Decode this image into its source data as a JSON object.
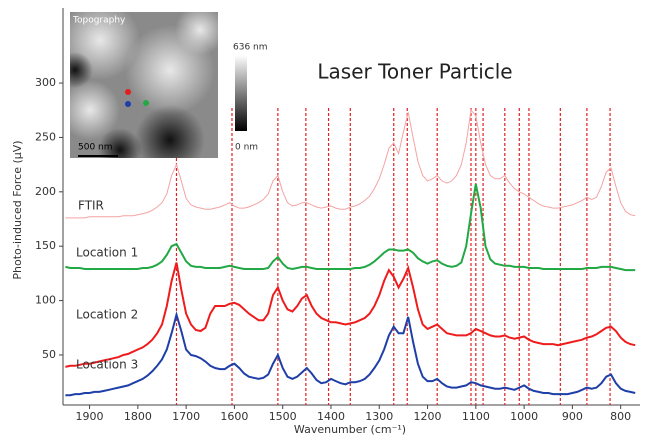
{
  "chart_data": {
    "type": "line",
    "title": "Laser Toner Particle",
    "x_label": "Wavenumber (cm⁻¹)",
    "y_label": "Photo-induced Force (μV)",
    "inset": {
      "title": "Topography",
      "scale_bar": "500 nm",
      "colorbar_max": "636 nm",
      "colorbar_min": "0 nm"
    },
    "x": [
      1950,
      1940,
      1930,
      1920,
      1910,
      1900,
      1890,
      1880,
      1870,
      1860,
      1850,
      1840,
      1830,
      1820,
      1810,
      1800,
      1790,
      1780,
      1770,
      1760,
      1750,
      1740,
      1730,
      1720,
      1710,
      1700,
      1690,
      1680,
      1670,
      1660,
      1650,
      1640,
      1630,
      1620,
      1610,
      1600,
      1590,
      1580,
      1570,
      1560,
      1550,
      1540,
      1530,
      1520,
      1510,
      1500,
      1490,
      1480,
      1470,
      1460,
      1450,
      1440,
      1430,
      1420,
      1410,
      1400,
      1390,
      1380,
      1370,
      1360,
      1350,
      1340,
      1330,
      1320,
      1310,
      1300,
      1290,
      1280,
      1270,
      1260,
      1250,
      1240,
      1230,
      1220,
      1210,
      1200,
      1190,
      1180,
      1170,
      1160,
      1150,
      1140,
      1130,
      1120,
      1110,
      1100,
      1090,
      1080,
      1070,
      1060,
      1050,
      1040,
      1030,
      1020,
      1010,
      1000,
      990,
      980,
      970,
      960,
      950,
      940,
      930,
      920,
      910,
      900,
      890,
      880,
      870,
      860,
      850,
      840,
      830,
      820,
      810,
      800,
      790,
      780,
      770
    ],
    "series": [
      {
        "name": "FTIR",
        "color": "#f4a3a3",
        "values": [
          176,
          176,
          176,
          176,
          176,
          177,
          177,
          177,
          177,
          177,
          177,
          177,
          178,
          178,
          178,
          179,
          180,
          181,
          183,
          186,
          190,
          198,
          215,
          225,
          210,
          194,
          188,
          186,
          185,
          184,
          184,
          185,
          186,
          188,
          190,
          187,
          185,
          185,
          186,
          188,
          190,
          193,
          198,
          210,
          215,
          200,
          190,
          187,
          188,
          190,
          190,
          188,
          186,
          185,
          186,
          187,
          185,
          184,
          184,
          186,
          187,
          189,
          192,
          196,
          203,
          212,
          225,
          240,
          245,
          235,
          255,
          273,
          250,
          228,
          215,
          210,
          212,
          215,
          210,
          208,
          210,
          215,
          225,
          245,
          275,
          270,
          245,
          225,
          215,
          212,
          212,
          215,
          208,
          203,
          200,
          198,
          195,
          192,
          189,
          187,
          186,
          185,
          185,
          186,
          187,
          188,
          190,
          192,
          195,
          193,
          195,
          205,
          218,
          222,
          205,
          190,
          182,
          179,
          178
        ]
      },
      {
        "name": "Location 1",
        "color": "#22a845",
        "values": [
          131,
          130,
          130,
          130,
          129,
          129,
          129,
          129,
          129,
          129,
          129,
          129,
          129,
          129,
          129,
          129,
          130,
          130,
          131,
          133,
          136,
          142,
          150,
          152,
          144,
          136,
          132,
          131,
          131,
          130,
          130,
          130,
          130,
          131,
          132,
          131,
          130,
          129,
          129,
          129,
          129,
          129,
          130,
          136,
          140,
          134,
          130,
          129,
          130,
          131,
          131,
          130,
          129,
          129,
          129,
          129,
          129,
          129,
          129,
          129,
          130,
          130,
          131,
          133,
          136,
          140,
          144,
          147,
          147,
          146,
          146,
          147,
          144,
          139,
          136,
          134,
          136,
          137,
          134,
          132,
          131,
          132,
          135,
          150,
          180,
          207,
          185,
          150,
          138,
          134,
          133,
          132,
          132,
          131,
          131,
          131,
          130,
          130,
          130,
          129,
          129,
          129,
          129,
          129,
          129,
          129,
          129,
          129,
          130,
          130,
          130,
          131,
          131,
          131,
          130,
          129,
          128,
          128,
          128
        ]
      },
      {
        "name": "Location 2",
        "color": "#ee1c1c",
        "values": [
          39,
          40,
          40,
          41,
          42,
          42,
          43,
          44,
          45,
          46,
          47,
          48,
          50,
          51,
          53,
          55,
          57,
          60,
          64,
          70,
          78,
          95,
          118,
          135,
          110,
          88,
          78,
          73,
          72,
          75,
          88,
          95,
          95,
          95,
          97,
          98,
          96,
          92,
          88,
          85,
          82,
          82,
          88,
          105,
          112,
          100,
          92,
          90,
          95,
          102,
          105,
          95,
          88,
          84,
          82,
          80,
          80,
          79,
          78,
          79,
          80,
          82,
          84,
          88,
          95,
          105,
          118,
          128,
          122,
          112,
          120,
          130,
          112,
          92,
          78,
          74,
          76,
          78,
          74,
          70,
          69,
          68,
          68,
          68,
          70,
          74,
          72,
          70,
          68,
          67,
          67,
          68,
          66,
          65,
          66,
          67,
          64,
          62,
          61,
          60,
          60,
          60,
          59,
          60,
          61,
          62,
          63,
          64,
          66,
          67,
          69,
          72,
          75,
          76,
          72,
          66,
          62,
          60,
          59
        ]
      },
      {
        "name": "Location 3",
        "color": "#1f3fa8",
        "values": [
          13,
          13,
          14,
          14,
          15,
          15,
          16,
          16,
          17,
          18,
          19,
          20,
          21,
          22,
          24,
          26,
          28,
          31,
          35,
          40,
          46,
          55,
          70,
          87,
          72,
          55,
          50,
          49,
          47,
          44,
          40,
          38,
          37,
          37,
          40,
          42,
          38,
          33,
          30,
          29,
          28,
          29,
          32,
          42,
          50,
          38,
          30,
          28,
          30,
          34,
          38,
          33,
          27,
          24,
          25,
          28,
          26,
          24,
          23,
          25,
          25,
          26,
          28,
          32,
          38,
          45,
          55,
          68,
          76,
          70,
          70,
          85,
          62,
          42,
          30,
          26,
          26,
          28,
          24,
          21,
          20,
          20,
          21,
          22,
          25,
          24,
          22,
          21,
          20,
          19,
          19,
          20,
          19,
          18,
          20,
          22,
          19,
          17,
          16,
          15,
          15,
          14,
          14,
          14,
          14,
          15,
          16,
          18,
          20,
          19,
          20,
          24,
          30,
          32,
          24,
          19,
          17,
          16,
          15
        ]
      }
    ],
    "markers": [
      1720,
      1605,
      1510,
      1452,
      1405,
      1360,
      1270,
      1242,
      1180,
      1110,
      1100,
      1085,
      1040,
      1010,
      990,
      925,
      870,
      822
    ],
    "marker_color": "#e02020",
    "xlim": [
      1955,
      760
    ],
    "ylim": [
      4,
      369
    ],
    "xticks": [
      1900,
      1800,
      1700,
      1600,
      1500,
      1400,
      1300,
      1200,
      1100,
      1000,
      900,
      800
    ],
    "yticks": [
      50,
      100,
      150,
      200,
      250,
      300
    ]
  }
}
